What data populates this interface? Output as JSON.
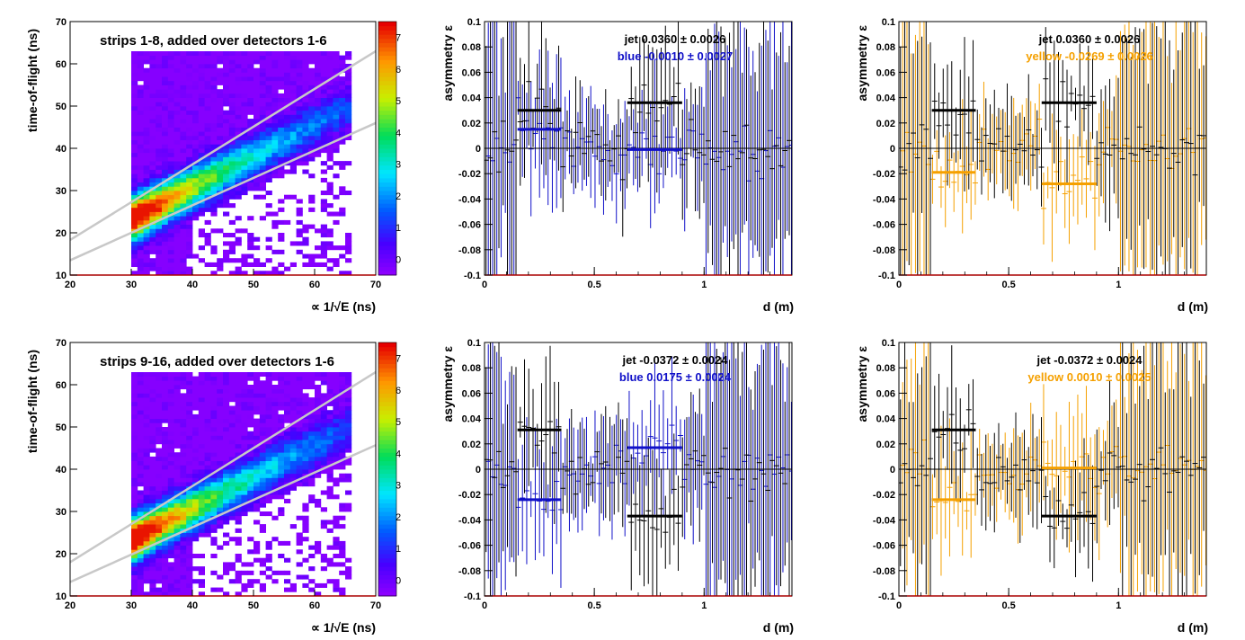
{
  "colors": {
    "blue": "#1010c8",
    "yellow": "#f5a000",
    "black": "#000000",
    "band": "#c8c8c8",
    "frame_red": "#aa0000"
  },
  "labels": {
    "tof_ylabel": "time-of-flight (ns)",
    "tof_xlabel": "∝ 1/√E (ns)",
    "asym_ylabel": "asymmetry ε",
    "asym_xlabel": "d (m)"
  },
  "chart_data": [
    {
      "id": "tof-top",
      "type": "heatmap",
      "title": "strips 1-8, added over detectors 1-6",
      "xlabel": "∝ 1/√E (ns)",
      "ylabel": "time-of-flight (ns)",
      "xlim": [
        20,
        70
      ],
      "ylim": [
        10,
        70
      ],
      "xticks": [
        20,
        30,
        40,
        50,
        60,
        70
      ],
      "yticks": [
        10,
        20,
        30,
        40,
        50,
        60,
        70
      ],
      "z_scale_ticks": [
        "7",
        "6",
        "5",
        "4",
        "3",
        "2",
        "1",
        "0"
      ],
      "band_upper": {
        "x": [
          20,
          70
        ],
        "y": [
          18.3,
          63
        ]
      },
      "band_lower": {
        "x": [
          20,
          70
        ],
        "y": [
          13.5,
          46
        ]
      },
      "ridge": {
        "x": [
          31,
          66
        ],
        "y": [
          24,
          50
        ]
      }
    },
    {
      "id": "asym-top-blue",
      "type": "scatter",
      "xlabel": "d (m)",
      "ylabel": "asymmetry ε",
      "xlim": [
        0,
        1.4
      ],
      "ylim": [
        -0.1,
        0.1
      ],
      "xticks": [
        0,
        0.5,
        1
      ],
      "yticks": [
        -0.1,
        -0.08,
        -0.06,
        -0.04,
        -0.02,
        0,
        0.02,
        0.04,
        0.06,
        0.08,
        0.1
      ],
      "annotations": [
        {
          "text": "jet  0.0360 ± 0.0026",
          "series": "jet"
        },
        {
          "text": "blue -0.0010 ± 0.0027",
          "series": "blue"
        }
      ],
      "series": [
        {
          "name": "jet",
          "color": "#000000",
          "segments": [
            {
              "x": [
                0.15,
                0.35
              ],
              "y": 0.03
            },
            {
              "x": [
                0.65,
                0.9
              ],
              "y": 0.036
            }
          ]
        },
        {
          "name": "blue",
          "color": "#1010c8",
          "segments": [
            {
              "x": [
                0.15,
                0.35
              ],
              "y": 0.015
            },
            {
              "x": [
                0.65,
                0.9
              ],
              "y": -0.001
            }
          ]
        }
      ]
    },
    {
      "id": "asym-top-yellow",
      "type": "scatter",
      "xlabel": "d (m)",
      "ylabel": "asymmetry ε",
      "xlim": [
        0,
        1.4
      ],
      "ylim": [
        -0.1,
        0.1
      ],
      "xticks": [
        0,
        0.5,
        1
      ],
      "yticks": [
        -0.1,
        -0.08,
        -0.06,
        -0.04,
        -0.02,
        0,
        0.02,
        0.04,
        0.06,
        0.08,
        0.1
      ],
      "annotations": [
        {
          "text": "jet  0.0360 ± 0.0026",
          "series": "jet"
        },
        {
          "text": "yellow -0.0269 ± 0.0026",
          "series": "yellow"
        }
      ],
      "series": [
        {
          "name": "jet",
          "color": "#000000",
          "segments": [
            {
              "x": [
                0.15,
                0.35
              ],
              "y": 0.03
            },
            {
              "x": [
                0.65,
                0.9
              ],
              "y": 0.036
            }
          ]
        },
        {
          "name": "yellow",
          "color": "#f5a000",
          "segments": [
            {
              "x": [
                0.15,
                0.35
              ],
              "y": -0.019
            },
            {
              "x": [
                0.65,
                0.9
              ],
              "y": -0.028
            }
          ]
        }
      ]
    },
    {
      "id": "tof-bottom",
      "type": "heatmap",
      "title": "strips 9-16, added over detectors 1-6",
      "xlabel": "∝ 1/√E (ns)",
      "ylabel": "time-of-flight (ns)",
      "xlim": [
        20,
        70
      ],
      "ylim": [
        10,
        70
      ],
      "xticks": [
        20,
        30,
        40,
        50,
        60,
        70
      ],
      "yticks": [
        10,
        20,
        30,
        40,
        50,
        60,
        70
      ],
      "z_scale_ticks": [
        "7",
        "6",
        "5",
        "4",
        "3",
        "2",
        "1",
        "0"
      ],
      "band_upper": {
        "x": [
          20,
          70
        ],
        "y": [
          18,
          63
        ]
      },
      "band_lower": {
        "x": [
          20,
          70
        ],
        "y": [
          13.3,
          45.7
        ]
      },
      "ridge": {
        "x": [
          31,
          66
        ],
        "y": [
          24,
          50
        ]
      }
    },
    {
      "id": "asym-bottom-blue",
      "type": "scatter",
      "xlabel": "d (m)",
      "ylabel": "asymmetry ε",
      "xlim": [
        0,
        1.4
      ],
      "ylim": [
        -0.1,
        0.1
      ],
      "xticks": [
        0,
        0.5,
        1
      ],
      "yticks": [
        -0.1,
        -0.08,
        -0.06,
        -0.04,
        -0.02,
        0,
        0.02,
        0.04,
        0.06,
        0.08,
        0.1
      ],
      "annotations": [
        {
          "text": "jet -0.0372 ± 0.0024",
          "series": "jet"
        },
        {
          "text": "blue  0.0175 ± 0.0024",
          "series": "blue"
        }
      ],
      "series": [
        {
          "name": "jet",
          "color": "#000000",
          "segments": [
            {
              "x": [
                0.15,
                0.35
              ],
              "y": 0.031
            },
            {
              "x": [
                0.65,
                0.9
              ],
              "y": -0.037
            }
          ]
        },
        {
          "name": "blue",
          "color": "#1010c8",
          "segments": [
            {
              "x": [
                0.15,
                0.35
              ],
              "y": -0.024
            },
            {
              "x": [
                0.65,
                0.9
              ],
              "y": 0.017
            }
          ]
        }
      ]
    },
    {
      "id": "asym-bottom-yellow",
      "type": "scatter",
      "xlabel": "d (m)",
      "ylabel": "asymmetry ε",
      "xlim": [
        0,
        1.4
      ],
      "ylim": [
        -0.1,
        0.1
      ],
      "xticks": [
        0,
        0.5,
        1
      ],
      "yticks": [
        -0.1,
        -0.08,
        -0.06,
        -0.04,
        -0.02,
        0,
        0.02,
        0.04,
        0.06,
        0.08,
        0.1
      ],
      "annotations": [
        {
          "text": "jet -0.0372 ± 0.0024",
          "series": "jet"
        },
        {
          "text": "yellow  0.0010 ± 0.0025",
          "series": "yellow"
        }
      ],
      "series": [
        {
          "name": "jet",
          "color": "#000000",
          "segments": [
            {
              "x": [
                0.15,
                0.35
              ],
              "y": 0.031
            },
            {
              "x": [
                0.65,
                0.9
              ],
              "y": -0.037
            }
          ]
        },
        {
          "name": "yellow",
          "color": "#f5a000",
          "segments": [
            {
              "x": [
                0.15,
                0.35
              ],
              "y": -0.024
            },
            {
              "x": [
                0.65,
                0.9
              ],
              "y": 0.001
            }
          ]
        }
      ]
    }
  ]
}
